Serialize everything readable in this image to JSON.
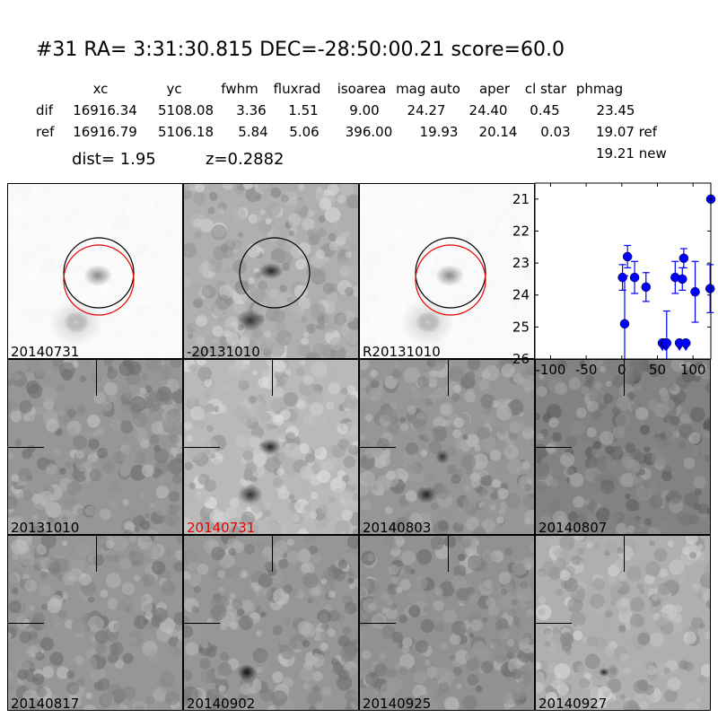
{
  "header": {
    "title": "#31   RA= 3:31:30.815 DEC=-28:50:00.21      score=60.0",
    "columns": [
      "xc",
      "yc",
      "fwhm",
      "fluxrad",
      "isoarea",
      "mag auto",
      "aper",
      "cl star",
      "phmag"
    ],
    "rows": [
      {
        "label": "dif",
        "values": [
          "16916.34",
          "5108.08",
          "3.36",
          "1.51",
          "9.00",
          "24.27",
          "24.40",
          "0.45",
          "23.45"
        ]
      },
      {
        "label": "ref",
        "values": [
          "16916.79",
          "5106.18",
          "5.84",
          "5.06",
          "396.00",
          "19.93",
          "20.14",
          "0.03",
          "19.07 ref"
        ]
      }
    ],
    "new_mag": "19.21 new",
    "dist": "dist=  1.95",
    "z": "z=0.2882"
  },
  "top_panels": [
    {
      "label": "20140731",
      "style": "galaxy",
      "circles": true
    },
    {
      "label": "-20131010",
      "style": "diff",
      "circles": true
    },
    {
      "label": "R20131010",
      "style": "galaxy",
      "circles": true
    }
  ],
  "stamps": [
    {
      "label": "20131010",
      "highlight": false
    },
    {
      "label": "20140731",
      "highlight": true
    },
    {
      "label": "20140803",
      "highlight": false
    },
    {
      "label": "20140807",
      "highlight": false
    },
    {
      "label": "20140817",
      "highlight": false
    },
    {
      "label": "20140902",
      "highlight": false
    },
    {
      "label": "20140925",
      "highlight": false
    },
    {
      "label": "20140927",
      "highlight": false
    }
  ],
  "colors": {
    "highlight": "#ff0000",
    "points": "#0000ff",
    "circle_new": "#ff0000",
    "circle_ref": "#000000"
  },
  "chart_data": {
    "type": "scatter",
    "xlim": [
      -122,
      125
    ],
    "ylim": [
      26,
      20.5
    ],
    "y_inverted": true,
    "xticks": [
      "-100",
      "-50",
      "0",
      "50",
      "100"
    ],
    "yticks": [
      "21",
      "22",
      "23",
      "24",
      "25",
      "26"
    ],
    "points": [
      {
        "x": 1,
        "y": 23.45,
        "err": 0.4,
        "upper_limit": false
      },
      {
        "x": 4,
        "y": 24.9,
        "err": 1.5,
        "upper_limit": false
      },
      {
        "x": 8,
        "y": 22.8,
        "err": 0.35,
        "upper_limit": false
      },
      {
        "x": 18,
        "y": 23.45,
        "err": 0.5,
        "upper_limit": false
      },
      {
        "x": 34,
        "y": 23.75,
        "err": 0.45,
        "upper_limit": false
      },
      {
        "x": 57,
        "y": 25.5,
        "err": 0,
        "upper_limit": true
      },
      {
        "x": 61,
        "y": 25.5,
        "err": 0,
        "upper_limit": true
      },
      {
        "x": 63,
        "y": 25.5,
        "err": 1.0,
        "upper_limit": true
      },
      {
        "x": 75,
        "y": 23.45,
        "err": 0.5,
        "upper_limit": false
      },
      {
        "x": 81,
        "y": 25.5,
        "err": 0,
        "upper_limit": true
      },
      {
        "x": 85,
        "y": 23.5,
        "err": 0.35,
        "upper_limit": false
      },
      {
        "x": 87,
        "y": 22.85,
        "err": 0.3,
        "upper_limit": false
      },
      {
        "x": 90,
        "y": 25.5,
        "err": 0,
        "upper_limit": true
      },
      {
        "x": 103,
        "y": 23.9,
        "err": 0.95,
        "upper_limit": false
      },
      {
        "x": 124,
        "y": 23.8,
        "err": 0.75,
        "upper_limit": false
      },
      {
        "x": 125,
        "y": 21.0,
        "err": 0,
        "upper_limit": false
      }
    ]
  }
}
